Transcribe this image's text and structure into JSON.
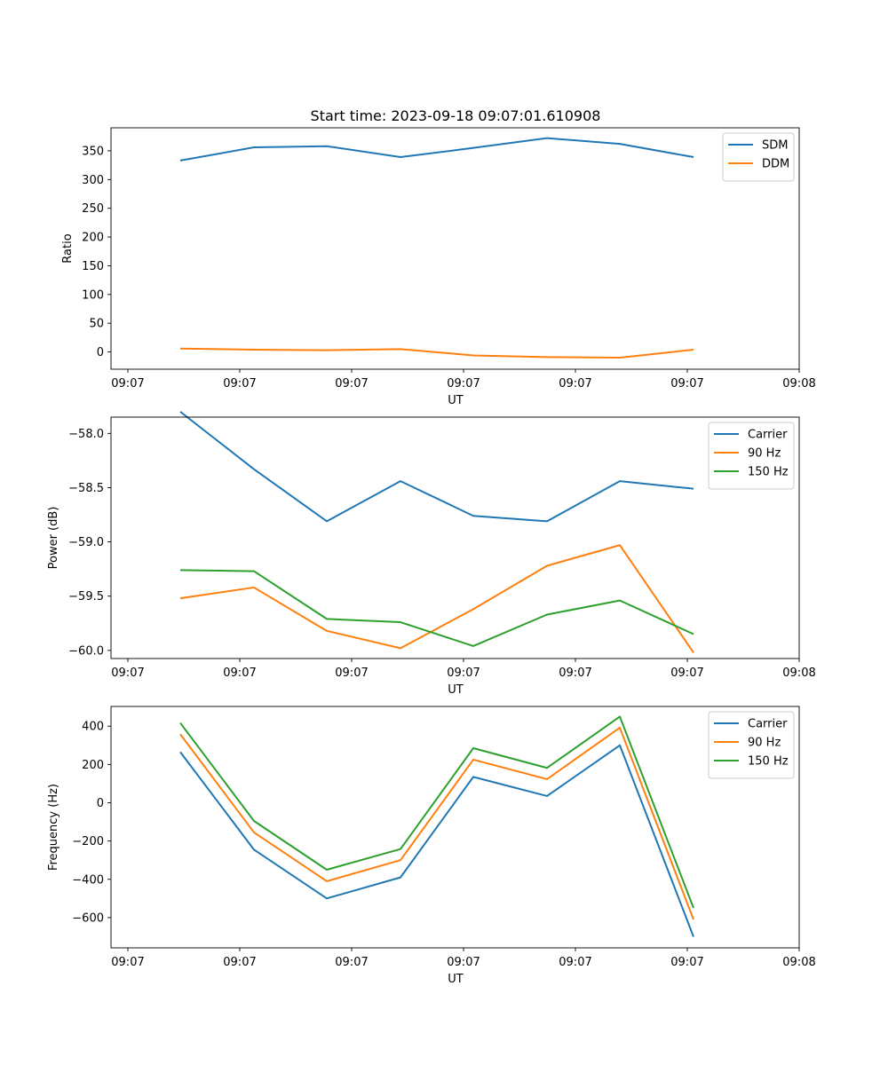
{
  "figure_title": "Start time: 2023-09-18 09:07:01.610908",
  "chart_data": [
    {
      "type": "line",
      "title": "Start time: 2023-09-18 09:07:01.610908",
      "xlabel": "UT",
      "ylabel": "Ratio",
      "x_tick_labels": [
        "09:07",
        "09:07",
        "09:07",
        "09:07",
        "09:07",
        "09:07",
        "09:08"
      ],
      "y_ticks": [
        0,
        50,
        100,
        150,
        200,
        250,
        300,
        350
      ],
      "y_tick_labels": [
        "0",
        "50",
        "100",
        "150",
        "200",
        "250",
        "300",
        "350"
      ],
      "ylim": [
        -30,
        390
      ],
      "legend_position": "upper right",
      "series": [
        {
          "name": "SDM",
          "color": "#1f77b4",
          "values": [
            333,
            356,
            358,
            339,
            355,
            372,
            362,
            339
          ]
        },
        {
          "name": "DDM",
          "color": "#ff7f0e",
          "values": [
            6,
            4,
            3,
            5,
            -6,
            -9,
            -10,
            4
          ]
        }
      ]
    },
    {
      "type": "line",
      "title": "",
      "xlabel": "UT",
      "ylabel": "Power (dB)",
      "x_tick_labels": [
        "09:07",
        "09:07",
        "09:07",
        "09:07",
        "09:07",
        "09:07",
        "09:08"
      ],
      "y_ticks": [
        -60.0,
        -59.5,
        -59.0,
        -58.5,
        -58.0
      ],
      "y_tick_labels": [
        "−60.0",
        "−59.5",
        "−59.0",
        "−58.5",
        "−58.0"
      ],
      "ylim": [
        -60.075,
        -57.85
      ],
      "legend_position": "upper right",
      "series": [
        {
          "name": "Carrier",
          "color": "#1f77b4",
          "values": [
            -57.8,
            -58.33,
            -58.81,
            -58.44,
            -58.76,
            -58.81,
            -58.44,
            -58.51
          ]
        },
        {
          "name": "90 Hz",
          "color": "#ff7f0e",
          "values": [
            -59.52,
            -59.42,
            -59.82,
            -59.98,
            -59.62,
            -59.22,
            -59.03,
            -60.02
          ]
        },
        {
          "name": "150 Hz",
          "color": "#2ca02c",
          "values": [
            -59.26,
            -59.27,
            -59.71,
            -59.74,
            -59.96,
            -59.67,
            -59.54,
            -59.85
          ]
        }
      ]
    },
    {
      "type": "line",
      "title": "",
      "xlabel": "UT",
      "ylabel": "Frequency (Hz)",
      "x_tick_labels": [
        "09:07",
        "09:07",
        "09:07",
        "09:07",
        "09:07",
        "09:07",
        "09:08"
      ],
      "y_ticks": [
        -600,
        -400,
        -200,
        0,
        200,
        400
      ],
      "y_tick_labels": [
        "−600",
        "−400",
        "−200",
        "0",
        "200",
        "400"
      ],
      "ylim": [
        -758,
        503
      ],
      "legend_position": "upper right",
      "series": [
        {
          "name": "Carrier",
          "color": "#1f77b4",
          "values": [
            265,
            -245,
            -500,
            -390,
            135,
            35,
            300,
            -700
          ]
        },
        {
          "name": "90 Hz",
          "color": "#ff7f0e",
          "values": [
            358,
            -155,
            -410,
            -300,
            225,
            123,
            392,
            -610
          ]
        },
        {
          "name": "150 Hz",
          "color": "#2ca02c",
          "values": [
            417,
            -95,
            -350,
            -242,
            285,
            182,
            450,
            -550
          ]
        }
      ]
    }
  ]
}
